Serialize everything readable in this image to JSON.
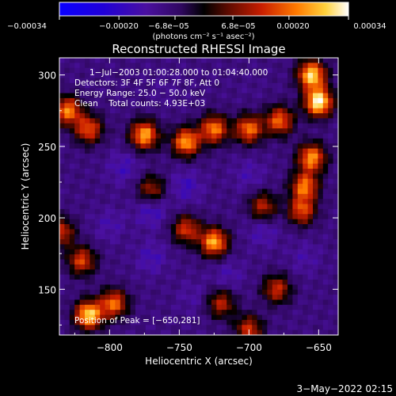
{
  "chart_data": {
    "type": "heatmap",
    "title": "Reconstructed RHESSI Image",
    "xlabel": "Heliocentric X (arcsec)",
    "ylabel": "Heliocentric Y (arcsec)",
    "xlim": [
      -836,
      -636
    ],
    "ylim": [
      118,
      312
    ],
    "xticks": [
      -800,
      -750,
      -700,
      -650
    ],
    "yticks": [
      150,
      200,
      250,
      300
    ],
    "xtick_labels": [
      "−800",
      "−750",
      "−700",
      "−650"
    ],
    "ytick_labels": [
      "150",
      "200",
      "250",
      "300"
    ],
    "colorbar": {
      "range": [
        -0.00034,
        0.00034
      ],
      "tick_values": [
        -0.00034,
        -0.0002,
        -6.8e-05,
        6.8e-05,
        0.0002,
        0.00034
      ],
      "top_labels": [
        "−6.8e−05",
        "6.8e−05"
      ],
      "bottom_labels": [
        "−0.00034",
        "−0.00020",
        "0.00020",
        "0.00034"
      ],
      "unit_label": "(photons cm⁻² s⁻¹ asec⁻²)"
    },
    "annotations": {
      "time_range": "1−Jul−2003 01:00:28.000 to 01:04:40.000",
      "detectors": "Detectors: 3F 4F 5F 6F 7F 8F, Att 0",
      "energy_range": "Energy Range: 25.0 − 50.0 keV",
      "clean_counts": "Clean    Total counts: 4.93E+03",
      "peak_position": "Position of Peak = [−650,281]"
    },
    "bright_regions": [
      {
        "x": -650,
        "y": 281,
        "value": 0.00034
      },
      {
        "x": -655,
        "y": 300,
        "value": 0.0003
      },
      {
        "x": -775,
        "y": 258,
        "value": 0.00026
      },
      {
        "x": -745,
        "y": 253,
        "value": 0.00025
      },
      {
        "x": -725,
        "y": 262,
        "value": 0.00022
      },
      {
        "x": -700,
        "y": 262,
        "value": 0.00021
      },
      {
        "x": -678,
        "y": 268,
        "value": 0.0002
      },
      {
        "x": -830,
        "y": 275,
        "value": 0.00022
      },
      {
        "x": -815,
        "y": 262,
        "value": 0.00018
      },
      {
        "x": -655,
        "y": 242,
        "value": 0.00024
      },
      {
        "x": -660,
        "y": 222,
        "value": 0.00021
      },
      {
        "x": -662,
        "y": 205,
        "value": 0.00017
      },
      {
        "x": -725,
        "y": 183,
        "value": 0.00026
      },
      {
        "x": -745,
        "y": 192,
        "value": 0.00015
      },
      {
        "x": -815,
        "y": 132,
        "value": 0.0003
      },
      {
        "x": -797,
        "y": 140,
        "value": 0.0002
      },
      {
        "x": -820,
        "y": 170,
        "value": 0.00016
      },
      {
        "x": -835,
        "y": 190,
        "value": 0.00014
      },
      {
        "x": -680,
        "y": 150,
        "value": 0.00014
      },
      {
        "x": -720,
        "y": 140,
        "value": 0.00012
      },
      {
        "x": -700,
        "y": 122,
        "value": 0.00014
      },
      {
        "x": -770,
        "y": 220,
        "value": 0.0001
      },
      {
        "x": -690,
        "y": 208,
        "value": 0.00012
      }
    ],
    "dark_regions": [
      {
        "x": -790,
        "y": 235,
        "value": -0.00018
      },
      {
        "x": -770,
        "y": 205,
        "value": -0.0002
      },
      {
        "x": -745,
        "y": 222,
        "value": -0.00019
      },
      {
        "x": -700,
        "y": 230,
        "value": -0.00016
      },
      {
        "x": -690,
        "y": 190,
        "value": -0.00017
      },
      {
        "x": -770,
        "y": 172,
        "value": -0.00018
      },
      {
        "x": -715,
        "y": 160,
        "value": -0.00016
      },
      {
        "x": -660,
        "y": 172,
        "value": -0.00015
      },
      {
        "x": -800,
        "y": 195,
        "value": -0.00016
      },
      {
        "x": -740,
        "y": 145,
        "value": -0.00014
      },
      {
        "x": -760,
        "y": 290,
        "value": -0.00012
      },
      {
        "x": -700,
        "y": 290,
        "value": -0.0001
      },
      {
        "x": -810,
        "y": 285,
        "value": -9e-05
      }
    ]
  },
  "footer": {
    "timestamp": "3−May−2022 02:15"
  }
}
